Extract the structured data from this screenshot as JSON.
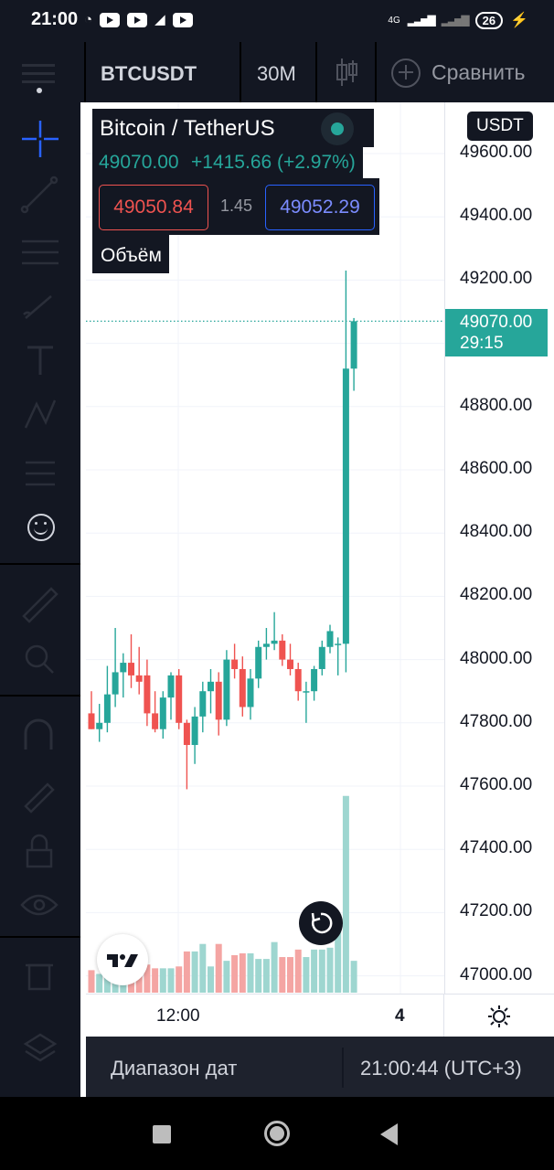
{
  "status_bar": {
    "time": "21:00",
    "network": "4G",
    "battery": "26"
  },
  "toolbar": {
    "symbol": "BTCUSDT",
    "timeframe": "30M",
    "compare_label": "Сравнить"
  },
  "legend": {
    "title": "Bitcoin / TetherUS",
    "price": "49070.00",
    "change": "+1415.66 (+2.97%)",
    "bid": "49050.84",
    "spread": "1.45",
    "ask": "49052.29",
    "volume_label": "Объём"
  },
  "price_axis": {
    "currency": "USDT",
    "ticks": [
      "49600.00",
      "49400.00",
      "49200.00",
      "48800.00",
      "48600.00",
      "48400.00",
      "48200.00",
      "48000.00",
      "47800.00",
      "47600.00",
      "47400.00",
      "47200.00",
      "47000.00"
    ],
    "current_price": "49070.00",
    "countdown": "29:15"
  },
  "time_axis": {
    "label_time": "12:00",
    "label_day": "4"
  },
  "bottom_bar": {
    "range_label": "Диапазон дат",
    "clock": "21:00:44 (UTC+3)"
  },
  "colors": {
    "up": "#26a69a",
    "down": "#ef5350",
    "vol_up": "#9ed6d0",
    "vol_down": "#f4a5a3"
  },
  "chart_data": {
    "type": "candlestick",
    "ylim": [
      46960,
      49760
    ],
    "candles": [
      {
        "o": 47830,
        "h": 47900,
        "l": 47780,
        "c": 47780
      },
      {
        "o": 47780,
        "h": 47860,
        "l": 47740,
        "c": 47800
      },
      {
        "o": 47800,
        "h": 47980,
        "l": 47770,
        "c": 47890
      },
      {
        "o": 47890,
        "h": 48100,
        "l": 47850,
        "c": 47960
      },
      {
        "o": 47960,
        "h": 48020,
        "l": 47880,
        "c": 47990
      },
      {
        "o": 47990,
        "h": 48080,
        "l": 47910,
        "c": 47950
      },
      {
        "o": 47950,
        "h": 48040,
        "l": 47890,
        "c": 47930
      },
      {
        "o": 47950,
        "h": 48000,
        "l": 47790,
        "c": 47830
      },
      {
        "o": 47830,
        "h": 47900,
        "l": 47770,
        "c": 47780
      },
      {
        "o": 47780,
        "h": 47900,
        "l": 47750,
        "c": 47880
      },
      {
        "o": 47880,
        "h": 47960,
        "l": 47810,
        "c": 47950
      },
      {
        "o": 47950,
        "h": 47970,
        "l": 47780,
        "c": 47800
      },
      {
        "o": 47800,
        "h": 47810,
        "l": 47590,
        "c": 47730
      },
      {
        "o": 47730,
        "h": 47850,
        "l": 47670,
        "c": 47820
      },
      {
        "o": 47820,
        "h": 47930,
        "l": 47770,
        "c": 47900
      },
      {
        "o": 47900,
        "h": 47970,
        "l": 47830,
        "c": 47930
      },
      {
        "o": 47930,
        "h": 47960,
        "l": 47760,
        "c": 47810
      },
      {
        "o": 47810,
        "h": 48030,
        "l": 47790,
        "c": 48000
      },
      {
        "o": 48000,
        "h": 48050,
        "l": 47940,
        "c": 47970
      },
      {
        "o": 47970,
        "h": 48010,
        "l": 47820,
        "c": 47850
      },
      {
        "o": 47850,
        "h": 47970,
        "l": 47810,
        "c": 47940
      },
      {
        "o": 47940,
        "h": 48060,
        "l": 47910,
        "c": 48040
      },
      {
        "o": 48040,
        "h": 48100,
        "l": 48000,
        "c": 48050
      },
      {
        "o": 48050,
        "h": 48150,
        "l": 48030,
        "c": 48060
      },
      {
        "o": 48060,
        "h": 48080,
        "l": 47980,
        "c": 48000
      },
      {
        "o": 48000,
        "h": 48050,
        "l": 47950,
        "c": 47970
      },
      {
        "o": 47970,
        "h": 47990,
        "l": 47870,
        "c": 47900
      },
      {
        "o": 47900,
        "h": 47930,
        "l": 47800,
        "c": 47900
      },
      {
        "o": 47900,
        "h": 47980,
        "l": 47870,
        "c": 47970
      },
      {
        "o": 47970,
        "h": 48060,
        "l": 47950,
        "c": 48040
      },
      {
        "o": 48040,
        "h": 48110,
        "l": 48020,
        "c": 48090
      },
      {
        "o": 48050,
        "h": 48070,
        "l": 47950,
        "c": 48050
      },
      {
        "o": 48050,
        "h": 49230,
        "l": 47960,
        "c": 48920
      },
      {
        "o": 48920,
        "h": 49080,
        "l": 48850,
        "c": 49070
      }
    ],
    "volume": [
      12,
      10,
      12,
      14,
      12,
      11,
      12,
      15,
      13,
      13,
      13,
      14,
      22,
      22,
      26,
      14,
      26,
      17,
      20,
      21,
      21,
      18,
      18,
      27,
      19,
      19,
      23,
      19,
      23,
      23,
      24,
      42,
      105,
      17
    ]
  }
}
